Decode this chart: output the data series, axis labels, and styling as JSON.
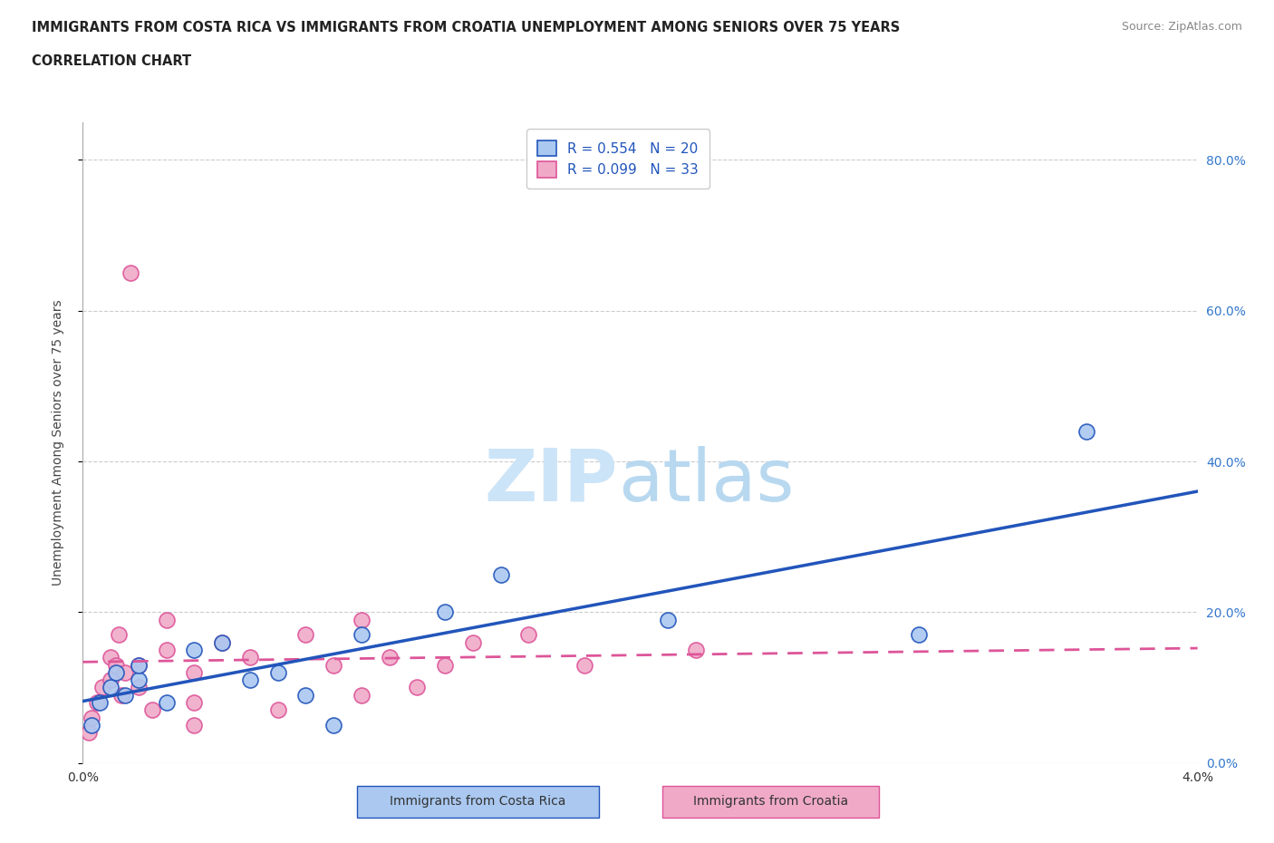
{
  "title_line1": "IMMIGRANTS FROM COSTA RICA VS IMMIGRANTS FROM CROATIA UNEMPLOYMENT AMONG SENIORS OVER 75 YEARS",
  "title_line2": "CORRELATION CHART",
  "source_text": "Source: ZipAtlas.com",
  "ylabel": "Unemployment Among Seniors over 75 years",
  "xlim": [
    0.0,
    0.04
  ],
  "ylim": [
    0.0,
    0.85
  ],
  "xticks": [
    0.0,
    0.01,
    0.02,
    0.03,
    0.04
  ],
  "yticks_right": [
    0.0,
    0.2,
    0.4,
    0.6,
    0.8
  ],
  "ytick_labels_right": [
    "0.0%",
    "20.0%",
    "40.0%",
    "60.0%",
    "80.0%"
  ],
  "legend_r1": "R = 0.554   N = 20",
  "legend_r2": "R = 0.099   N = 33",
  "costa_rica_color": "#aac8f0",
  "croatia_color": "#f0aac8",
  "costa_rica_line_color": "#2255bb",
  "croatia_line_color": "#dd5599",
  "watermark_zip_color": "#cce4f8",
  "watermark_atlas_color": "#b8d8f0",
  "costa_rica_x": [
    0.0003,
    0.0006,
    0.001,
    0.0012,
    0.0015,
    0.002,
    0.002,
    0.003,
    0.004,
    0.005,
    0.006,
    0.007,
    0.008,
    0.009,
    0.01,
    0.013,
    0.015,
    0.021,
    0.03,
    0.036
  ],
  "costa_rica_y": [
    0.05,
    0.08,
    0.1,
    0.12,
    0.09,
    0.11,
    0.13,
    0.08,
    0.15,
    0.16,
    0.11,
    0.12,
    0.09,
    0.05,
    0.17,
    0.2,
    0.25,
    0.19,
    0.17,
    0.44
  ],
  "croatia_x": [
    0.0002,
    0.0003,
    0.0005,
    0.0007,
    0.001,
    0.001,
    0.0012,
    0.0013,
    0.0014,
    0.0015,
    0.0017,
    0.002,
    0.002,
    0.0025,
    0.003,
    0.003,
    0.004,
    0.004,
    0.005,
    0.006,
    0.007,
    0.008,
    0.009,
    0.01,
    0.01,
    0.011,
    0.012,
    0.013,
    0.014,
    0.016,
    0.018,
    0.022,
    0.004
  ],
  "croatia_y": [
    0.04,
    0.06,
    0.08,
    0.1,
    0.11,
    0.14,
    0.13,
    0.17,
    0.09,
    0.12,
    0.65,
    0.1,
    0.13,
    0.07,
    0.15,
    0.19,
    0.08,
    0.12,
    0.16,
    0.14,
    0.07,
    0.17,
    0.13,
    0.09,
    0.19,
    0.14,
    0.1,
    0.13,
    0.16,
    0.17,
    0.13,
    0.15,
    0.05
  ]
}
